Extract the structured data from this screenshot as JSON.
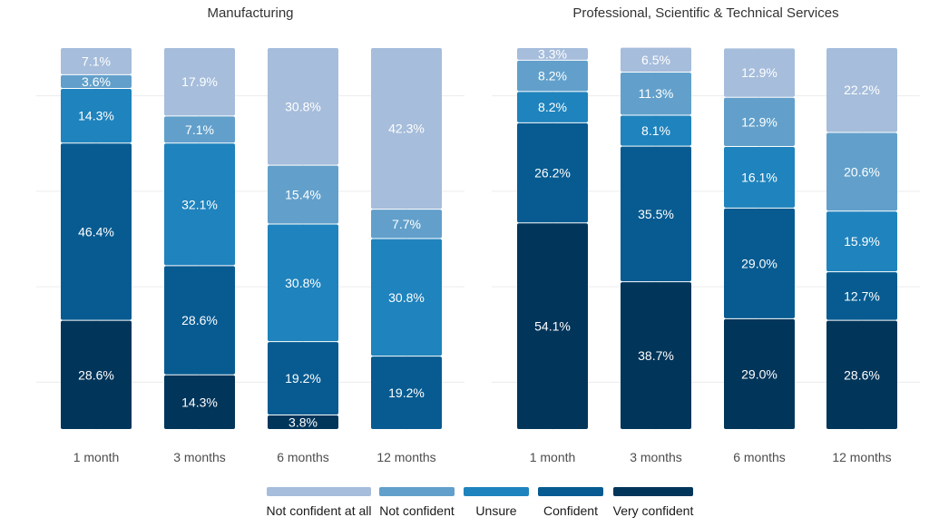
{
  "chart_data": [
    {
      "type": "bar",
      "stacked": true,
      "orientation": "vertical",
      "title": "Manufacturing",
      "categories": [
        "1 month",
        "3 months",
        "6 months",
        "12 months"
      ],
      "ylim": [
        0,
        100
      ],
      "grid": true,
      "series": [
        {
          "name": "Very confident",
          "values": [
            28.6,
            14.3,
            3.8,
            0
          ]
        },
        {
          "name": "Confident",
          "values": [
            46.4,
            28.6,
            19.2,
            19.2
          ]
        },
        {
          "name": "Unsure",
          "values": [
            14.3,
            32.1,
            30.8,
            30.8
          ]
        },
        {
          "name": "Not confident",
          "values": [
            3.6,
            7.1,
            15.4,
            7.7
          ]
        },
        {
          "name": "Not confident at all",
          "values": [
            7.1,
            17.9,
            30.8,
            42.3
          ]
        }
      ],
      "labels": [
        [
          "28.6%",
          "14.3%",
          "3.8%",
          ""
        ],
        [
          "46.4%",
          "28.6%",
          "19.2%",
          "19.2%"
        ],
        [
          "14.3%",
          "32.1%",
          "30.8%",
          "30.8%"
        ],
        [
          "3.6%",
          "7.1%",
          "15.4%",
          "7.7%"
        ],
        [
          "7.1%",
          "17.9%",
          "30.8%",
          "42.3%"
        ]
      ]
    },
    {
      "type": "bar",
      "stacked": true,
      "orientation": "vertical",
      "title": "Professional, Scientific & Technical Services",
      "categories": [
        "1 month",
        "3 months",
        "6 months",
        "12 months"
      ],
      "ylim": [
        0,
        100
      ],
      "grid": true,
      "series": [
        {
          "name": "Very confident",
          "values": [
            54.1,
            38.7,
            29.0,
            28.6
          ]
        },
        {
          "name": "Confident",
          "values": [
            26.2,
            35.5,
            29.0,
            12.7
          ]
        },
        {
          "name": "Unsure",
          "values": [
            8.2,
            8.1,
            16.1,
            15.9
          ]
        },
        {
          "name": "Not confident",
          "values": [
            8.2,
            11.3,
            12.9,
            20.6
          ]
        },
        {
          "name": "Not confident at all",
          "values": [
            3.3,
            6.5,
            12.9,
            22.2
          ]
        }
      ],
      "labels": [
        [
          "54.1%",
          "38.7%",
          "29.0%",
          "28.6%"
        ],
        [
          "26.2%",
          "35.5%",
          "29.0%",
          "12.7%"
        ],
        [
          "8.2%",
          "8.1%",
          "16.1%",
          "15.9%"
        ],
        [
          "8.2%",
          "11.3%",
          "12.9%",
          "20.6%"
        ],
        [
          "3.3%",
          "6.5%",
          "12.9%",
          "22.2%"
        ]
      ]
    }
  ],
  "legend": {
    "placement": "bottom",
    "items": [
      {
        "label": "Not confident at all",
        "color": "#a6bddb"
      },
      {
        "label": "Not confident",
        "color": "#62a0cb"
      },
      {
        "label": "Unsure",
        "color": "#1f83bd"
      },
      {
        "label": "Confident",
        "color": "#075b91"
      },
      {
        "label": "Very confident",
        "color": "#02355a"
      }
    ]
  },
  "colors": {
    "Very confident": "#02355a",
    "Confident": "#075b91",
    "Unsure": "#1f83bd",
    "Not confident": "#62a0cb",
    "Not confident at all": "#a6bddb",
    "gridline": "#ebebeb",
    "text": "#333333",
    "label_text": "#ffffff"
  }
}
